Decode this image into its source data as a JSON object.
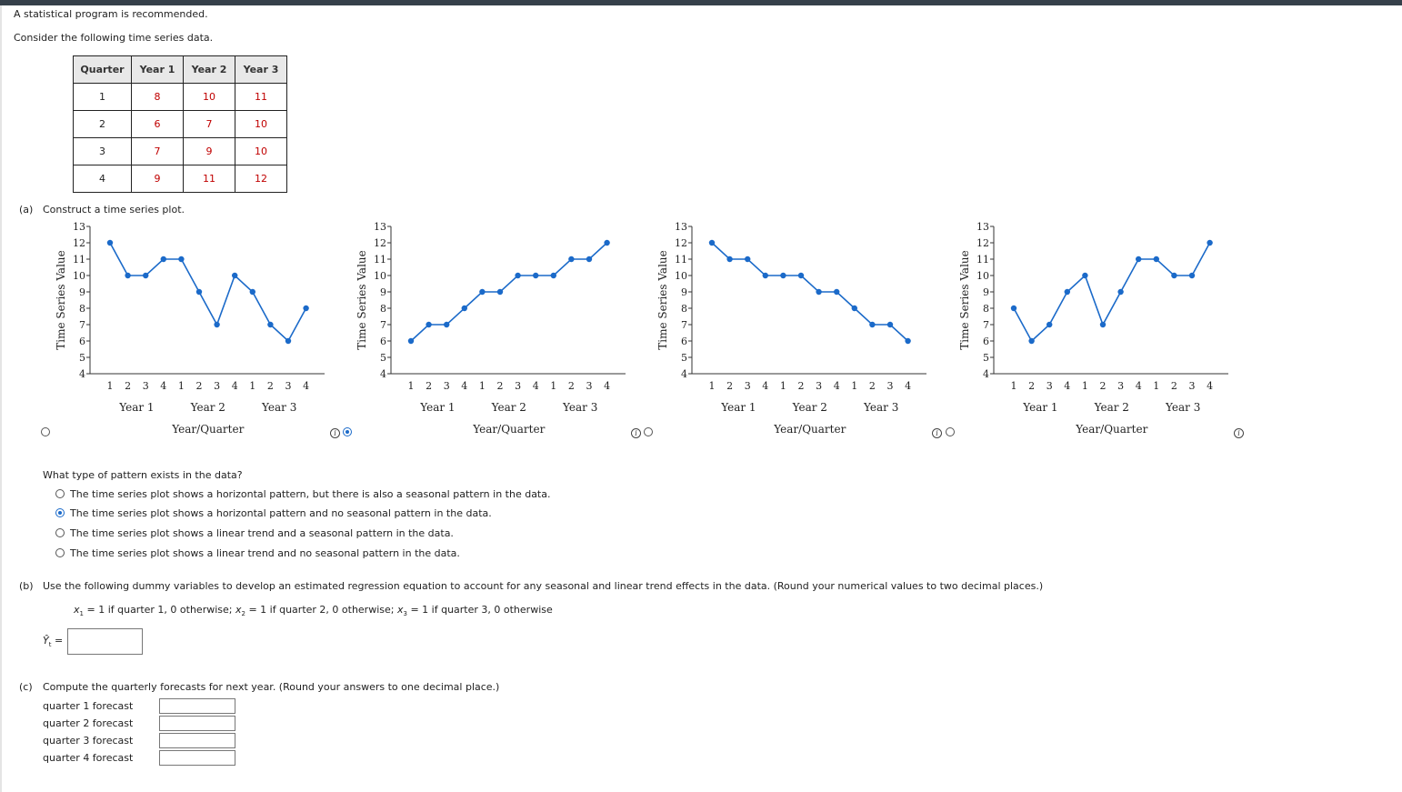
{
  "intro": {
    "line1": "A statistical program is recommended.",
    "line2": "Consider the following time series data."
  },
  "table": {
    "headers": [
      "Quarter",
      "Year 1",
      "Year 2",
      "Year 3"
    ],
    "rows": [
      [
        "1",
        "8",
        "10",
        "11"
      ],
      [
        "2",
        "6",
        "7",
        "10"
      ],
      [
        "3",
        "7",
        "9",
        "10"
      ],
      [
        "4",
        "9",
        "11",
        "12"
      ]
    ]
  },
  "part_a": {
    "label": "(a)",
    "prompt": "Construct a time series plot.",
    "question": "What type of pattern exists in the data?",
    "options": [
      "The time series plot shows a horizontal pattern, but there is also a seasonal pattern in the data.",
      "The time series plot shows a horizontal pattern and no seasonal pattern in the data.",
      "The time series plot shows a linear trend and a seasonal pattern in the data.",
      "The time series plot shows a linear trend and no seasonal pattern in the data."
    ],
    "selected_option_index": 1,
    "selected_plot_index": 1
  },
  "part_b": {
    "label": "(b)",
    "prompt": "Use the following dummy variables to develop an estimated regression equation to account for any seasonal and linear trend effects in the data. (Round your numerical values to two decimal places.)",
    "dummy_x1": "x",
    "dummy_x1_sub": "1",
    "dummy_x1_def": " = 1 if quarter 1, 0 otherwise; ",
    "dummy_x2": "x",
    "dummy_x2_sub": "2",
    "dummy_x2_def": " = 1 if quarter 2, 0 otherwise; ",
    "dummy_x3": "x",
    "dummy_x3_sub": "3",
    "dummy_x3_def": " = 1 if quarter 3, 0 otherwise",
    "yhat_label": "Ŷ",
    "yhat_sub": "t",
    "yhat_eq": "=",
    "equation_value": ""
  },
  "part_c": {
    "label": "(c)",
    "prompt": "Compute the quarterly forecasts for next year. (Round your answers to one decimal place.)",
    "rows": [
      {
        "label": "quarter 1 forecast",
        "value": ""
      },
      {
        "label": "quarter 2 forecast",
        "value": ""
      },
      {
        "label": "quarter 3 forecast",
        "value": ""
      },
      {
        "label": "quarter 4 forecast",
        "value": ""
      }
    ]
  },
  "colors": {
    "line": "#1b6ac9",
    "point": "#1b6ac9",
    "table_value": "#c00000"
  },
  "chart_data": [
    {
      "type": "line",
      "x": [
        "1",
        "2",
        "3",
        "4",
        "1",
        "2",
        "3",
        "4",
        "1",
        "2",
        "3",
        "4"
      ],
      "values": [
        12,
        10,
        10,
        11,
        11,
        9,
        7,
        10,
        9,
        7,
        6,
        8
      ],
      "ylabel": "Time Series Value",
      "xlabel": "Year/Quarter",
      "year_labels": [
        "Year 1",
        "Year 2",
        "Year 3"
      ],
      "ylim": [
        4,
        13
      ],
      "yticks": [
        "4",
        "5",
        "6",
        "7",
        "8",
        "9",
        "10",
        "11",
        "12",
        "13"
      ],
      "grid": false
    },
    {
      "type": "line",
      "x": [
        "1",
        "2",
        "3",
        "4",
        "1",
        "2",
        "3",
        "4",
        "1",
        "2",
        "3",
        "4"
      ],
      "values": [
        6,
        7,
        7,
        8,
        9,
        9,
        10,
        10,
        10,
        11,
        11,
        12
      ],
      "ylabel": "Time Series Value",
      "xlabel": "Year/Quarter",
      "year_labels": [
        "Year 1",
        "Year 2",
        "Year 3"
      ],
      "ylim": [
        4,
        13
      ],
      "yticks": [
        "4",
        "5",
        "6",
        "7",
        "8",
        "9",
        "10",
        "11",
        "12",
        "13"
      ],
      "grid": false
    },
    {
      "type": "line",
      "x": [
        "1",
        "2",
        "3",
        "4",
        "1",
        "2",
        "3",
        "4",
        "1",
        "2",
        "3",
        "4"
      ],
      "values": [
        12,
        11,
        11,
        10,
        10,
        10,
        9,
        9,
        8,
        7,
        7,
        6
      ],
      "ylabel": "Time Series Value",
      "xlabel": "Year/Quarter",
      "year_labels": [
        "Year 1",
        "Year 2",
        "Year 3"
      ],
      "ylim": [
        4,
        13
      ],
      "yticks": [
        "4",
        "5",
        "6",
        "7",
        "8",
        "9",
        "10",
        "11",
        "12",
        "13"
      ],
      "grid": false
    },
    {
      "type": "line",
      "x": [
        "1",
        "2",
        "3",
        "4",
        "1",
        "2",
        "3",
        "4",
        "1",
        "2",
        "3",
        "4"
      ],
      "values": [
        8,
        6,
        7,
        9,
        10,
        7,
        9,
        11,
        11,
        10,
        10,
        12
      ],
      "ylabel": "Time Series Value",
      "xlabel": "Year/Quarter",
      "year_labels": [
        "Year 1",
        "Year 2",
        "Year 3"
      ],
      "ylim": [
        4,
        13
      ],
      "yticks": [
        "4",
        "5",
        "6",
        "7",
        "8",
        "9",
        "10",
        "11",
        "12",
        "13"
      ],
      "grid": false
    }
  ]
}
